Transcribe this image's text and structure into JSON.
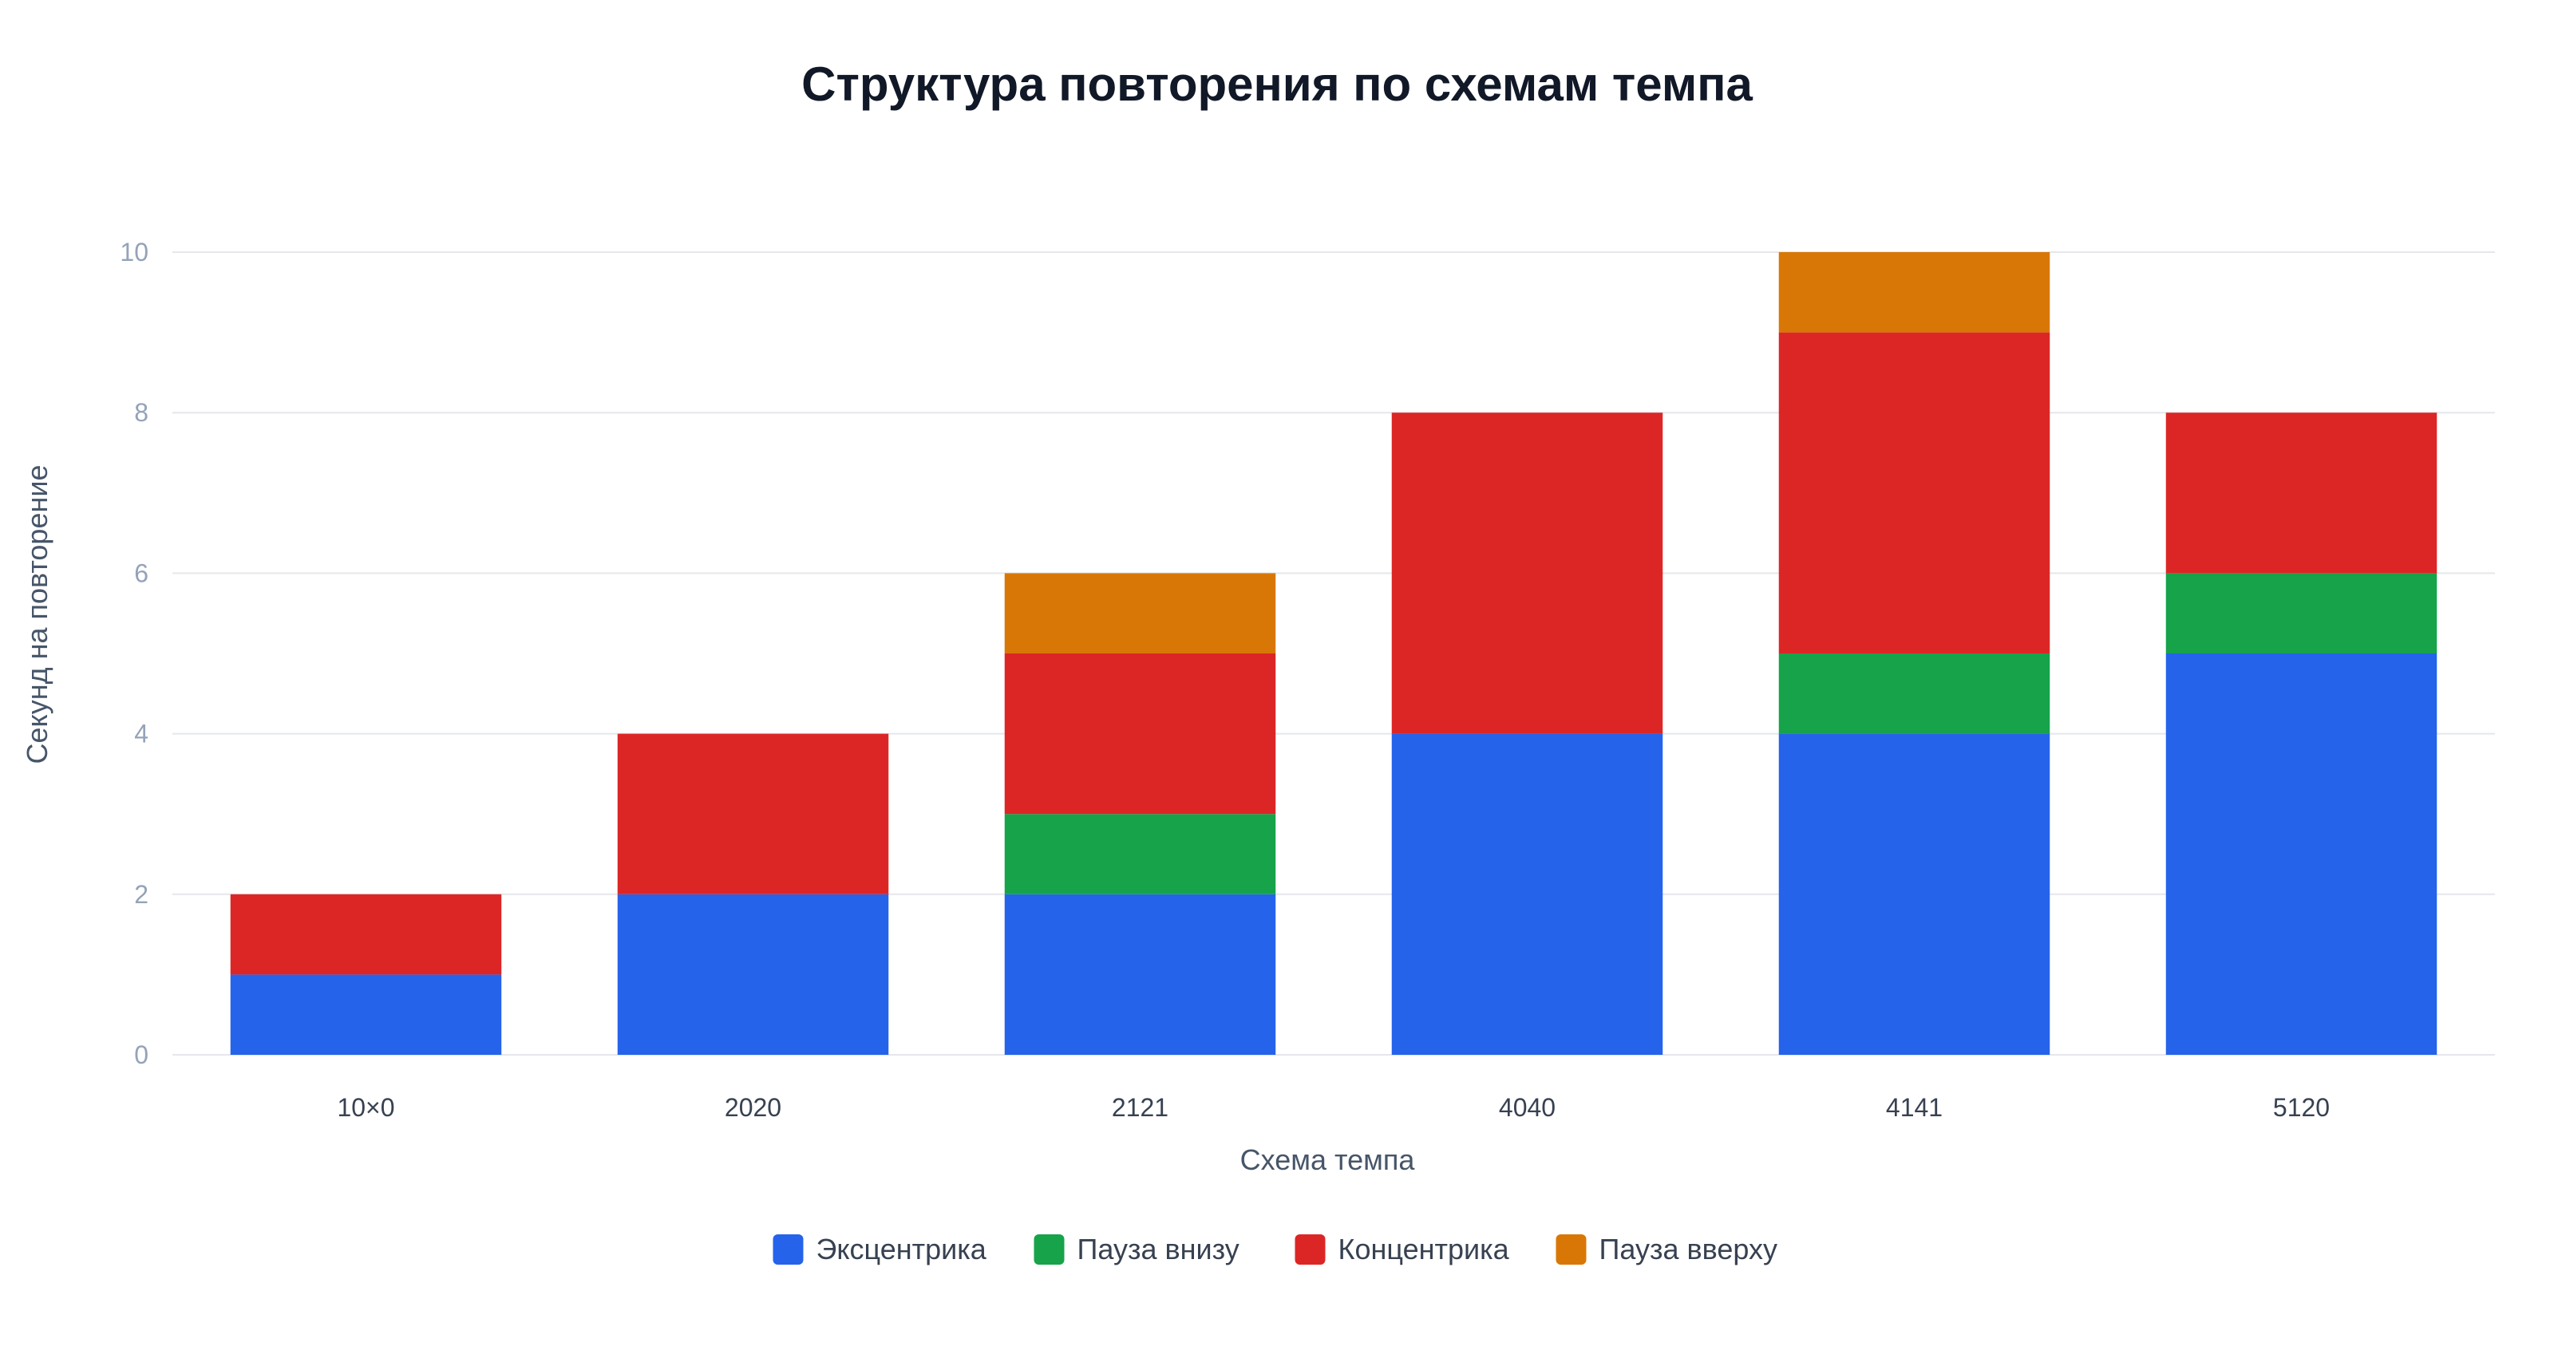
{
  "chart_data": {
    "type": "bar",
    "stacked": true,
    "title": "Структура повторения по схемам темпа",
    "xlabel": "Схема темпа",
    "ylabel": "Секунд на повторение",
    "categories": [
      "10×0",
      "2020",
      "2121",
      "4040",
      "4141",
      "5120"
    ],
    "ylim": [
      0,
      10
    ],
    "yticks": [
      0,
      2,
      4,
      6,
      8,
      10
    ],
    "grid": true,
    "legend_position": "bottom",
    "series": [
      {
        "name": "Эксцентрика",
        "color": "#2563eb",
        "values": [
          1,
          2,
          2,
          4,
          4,
          5
        ]
      },
      {
        "name": "Пауза внизу",
        "color": "#16a34a",
        "values": [
          0,
          0,
          1,
          0,
          1,
          1
        ]
      },
      {
        "name": "Концентрика",
        "color": "#dc2626",
        "values": [
          1,
          2,
          2,
          4,
          4,
          2
        ]
      },
      {
        "name": "Пауза вверху",
        "color": "#d97706",
        "values": [
          0,
          0,
          1,
          0,
          1,
          0
        ]
      }
    ]
  }
}
